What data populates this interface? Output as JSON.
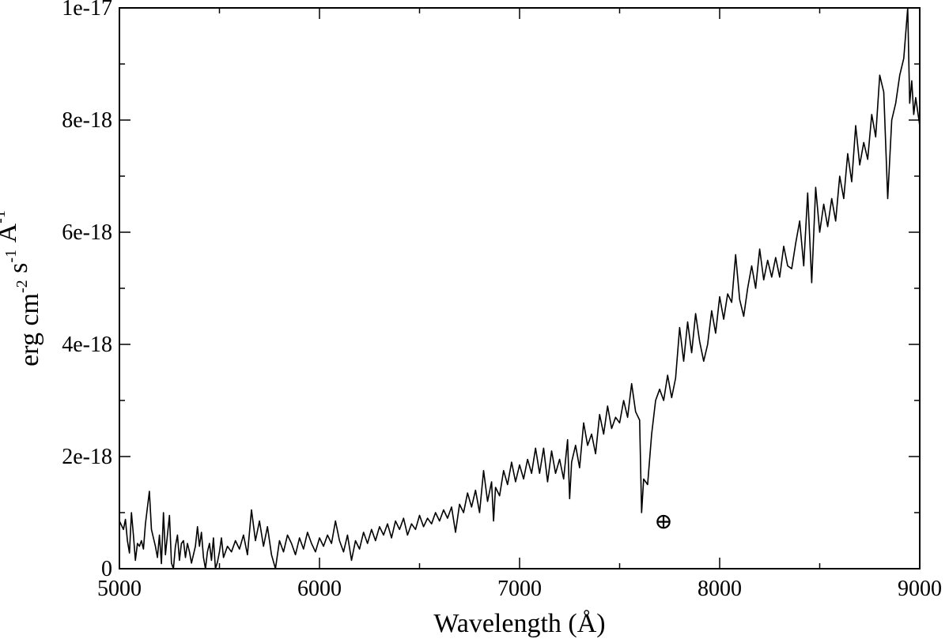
{
  "chart_data": {
    "type": "line",
    "xlabel": "Wavelength (Å)",
    "ylabel": "erg cm",
    "ylabel_parts": [
      {
        "text": "erg cm",
        "sup": "-2"
      },
      {
        "text": " s",
        "sup": "-1"
      },
      {
        "text": " Å",
        "sup": "-1"
      }
    ],
    "xlim": [
      5000,
      9000
    ],
    "ylim": [
      0,
      1e-17
    ],
    "x_ticks": [
      5000,
      6000,
      7000,
      8000,
      9000
    ],
    "x_tick_labels": [
      "5000",
      "6000",
      "7000",
      "8000",
      "9000"
    ],
    "y_ticks": [
      0,
      2e-18,
      4e-18,
      6e-18,
      8e-18,
      1e-17
    ],
    "y_tick_labels": [
      "0",
      "2e-18",
      "4e-18",
      "6e-18",
      "8e-18",
      "1e-17"
    ],
    "grid": false,
    "legend": "none",
    "line_color": "#000000",
    "annotation": {
      "symbol": "⊕",
      "x": 7720,
      "y": 8.5e-19
    },
    "series": [
      {
        "values_units": "erg cm^-2 s^-1 Å^-1",
        "points": [
          [
            5000,
            8.5e-19
          ],
          [
            5020,
            7e-19
          ],
          [
            5030,
            8.8e-19
          ],
          [
            5040,
            5e-19
          ],
          [
            5050,
            2.8e-19
          ],
          [
            5060,
            1e-18
          ],
          [
            5070,
            6e-19
          ],
          [
            5080,
            1.5e-19
          ],
          [
            5090,
            4.5e-19
          ],
          [
            5100,
            4e-19
          ],
          [
            5110,
            5e-19
          ],
          [
            5120,
            3.5e-19
          ],
          [
            5130,
            8e-19
          ],
          [
            5150,
            1.38e-18
          ],
          [
            5160,
            7e-19
          ],
          [
            5170,
            5.5e-19
          ],
          [
            5180,
            4e-19
          ],
          [
            5190,
            2e-19
          ],
          [
            5200,
            6e-19
          ],
          [
            5210,
            9e-20
          ],
          [
            5220,
            1e-18
          ],
          [
            5230,
            2.5e-19
          ],
          [
            5240,
            6e-19
          ],
          [
            5250,
            9.5e-19
          ],
          [
            5260,
            1e-19
          ],
          [
            5270,
            0
          ],
          [
            5280,
            4e-19
          ],
          [
            5290,
            6e-19
          ],
          [
            5300,
            1.5e-19
          ],
          [
            5310,
            4.5e-19
          ],
          [
            5320,
            5e-19
          ],
          [
            5330,
            2e-19
          ],
          [
            5340,
            4.5e-19
          ],
          [
            5350,
            3e-19
          ],
          [
            5360,
            1e-19
          ],
          [
            5380,
            4e-19
          ],
          [
            5390,
            7.5e-19
          ],
          [
            5400,
            4e-19
          ],
          [
            5410,
            6.5e-19
          ],
          [
            5420,
            2e-19
          ],
          [
            5430,
            0
          ],
          [
            5440,
            3e-19
          ],
          [
            5450,
            4.5e-19
          ],
          [
            5460,
            1.5e-19
          ],
          [
            5470,
            5.5e-19
          ],
          [
            5480,
            0
          ],
          [
            5490,
            1.2e-19
          ],
          [
            5500,
            3e-19
          ],
          [
            5510,
            5.5e-19
          ],
          [
            5520,
            2e-19
          ],
          [
            5540,
            4e-19
          ],
          [
            5560,
            3e-19
          ],
          [
            5580,
            5e-19
          ],
          [
            5600,
            3.5e-19
          ],
          [
            5620,
            6e-19
          ],
          [
            5640,
            2.5e-19
          ],
          [
            5660,
            1.05e-18
          ],
          [
            5680,
            5e-19
          ],
          [
            5700,
            8.5e-19
          ],
          [
            5720,
            4e-19
          ],
          [
            5740,
            7.5e-19
          ],
          [
            5760,
            2.5e-19
          ],
          [
            5780,
            0
          ],
          [
            5800,
            5e-19
          ],
          [
            5820,
            3e-19
          ],
          [
            5840,
            6e-19
          ],
          [
            5860,
            4.5e-19
          ],
          [
            5880,
            2.5e-19
          ],
          [
            5900,
            5.5e-19
          ],
          [
            5920,
            3.5e-19
          ],
          [
            5940,
            6.5e-19
          ],
          [
            5960,
            4.5e-19
          ],
          [
            5980,
            3e-19
          ],
          [
            6000,
            5.5e-19
          ],
          [
            6020,
            4e-19
          ],
          [
            6040,
            6e-19
          ],
          [
            6060,
            4.5e-19
          ],
          [
            6080,
            8.5e-19
          ],
          [
            6100,
            5e-19
          ],
          [
            6120,
            3e-19
          ],
          [
            6140,
            6e-19
          ],
          [
            6160,
            1.5e-19
          ],
          [
            6180,
            5e-19
          ],
          [
            6200,
            3.5e-19
          ],
          [
            6220,
            6.5e-19
          ],
          [
            6240,
            4.5e-19
          ],
          [
            6260,
            7e-19
          ],
          [
            6280,
            5e-19
          ],
          [
            6300,
            7.5e-19
          ],
          [
            6320,
            6e-19
          ],
          [
            6340,
            8e-19
          ],
          [
            6360,
            5.5e-19
          ],
          [
            6380,
            8.5e-19
          ],
          [
            6400,
            7e-19
          ],
          [
            6420,
            9e-19
          ],
          [
            6440,
            6e-19
          ],
          [
            6460,
            8e-19
          ],
          [
            6480,
            7e-19
          ],
          [
            6500,
            9.5e-19
          ],
          [
            6520,
            7.5e-19
          ],
          [
            6540,
            9e-19
          ],
          [
            6560,
            8e-19
          ],
          [
            6580,
            1e-18
          ],
          [
            6600,
            8.5e-19
          ],
          [
            6620,
            1.05e-18
          ],
          [
            6640,
            9e-19
          ],
          [
            6660,
            1.1e-18
          ],
          [
            6680,
            6.5e-19
          ],
          [
            6700,
            1.15e-18
          ],
          [
            6720,
            1e-18
          ],
          [
            6740,
            1.35e-18
          ],
          [
            6760,
            1.1e-18
          ],
          [
            6780,
            1.4e-18
          ],
          [
            6800,
            1e-18
          ],
          [
            6820,
            1.75e-18
          ],
          [
            6840,
            1.2e-18
          ],
          [
            6860,
            1.55e-18
          ],
          [
            6870,
            8.5e-19
          ],
          [
            6880,
            1.45e-18
          ],
          [
            6900,
            1.3e-18
          ],
          [
            6920,
            1.75e-18
          ],
          [
            6940,
            1.5e-18
          ],
          [
            6960,
            1.9e-18
          ],
          [
            6980,
            1.55e-18
          ],
          [
            7000,
            1.85e-18
          ],
          [
            7020,
            1.6e-18
          ],
          [
            7040,
            1.95e-18
          ],
          [
            7060,
            1.7e-18
          ],
          [
            7080,
            2.15e-18
          ],
          [
            7100,
            1.7e-18
          ],
          [
            7120,
            2.15e-18
          ],
          [
            7140,
            1.55e-18
          ],
          [
            7160,
            2.1e-18
          ],
          [
            7180,
            1.7e-18
          ],
          [
            7200,
            1.95e-18
          ],
          [
            7220,
            1.6e-18
          ],
          [
            7240,
            2.3e-18
          ],
          [
            7250,
            1.25e-18
          ],
          [
            7260,
            1.9e-18
          ],
          [
            7280,
            2.2e-18
          ],
          [
            7300,
            1.8e-18
          ],
          [
            7320,
            2.6e-18
          ],
          [
            7340,
            2.2e-18
          ],
          [
            7360,
            2.4e-18
          ],
          [
            7380,
            2.05e-18
          ],
          [
            7400,
            2.75e-18
          ],
          [
            7420,
            2.4e-18
          ],
          [
            7440,
            2.9e-18
          ],
          [
            7460,
            2.5e-18
          ],
          [
            7480,
            2.7e-18
          ],
          [
            7500,
            2.6e-18
          ],
          [
            7520,
            3e-18
          ],
          [
            7540,
            2.7e-18
          ],
          [
            7560,
            3.3e-18
          ],
          [
            7580,
            2.8e-18
          ],
          [
            7600,
            2.65e-18
          ],
          [
            7610,
            1e-18
          ],
          [
            7620,
            1.6e-18
          ],
          [
            7640,
            1.5e-18
          ],
          [
            7660,
            2.4e-18
          ],
          [
            7680,
            3e-18
          ],
          [
            7700,
            3.2e-18
          ],
          [
            7720,
            3e-18
          ],
          [
            7740,
            3.45e-18
          ],
          [
            7760,
            3.05e-18
          ],
          [
            7780,
            3.4e-18
          ],
          [
            7800,
            4.3e-18
          ],
          [
            7820,
            3.7e-18
          ],
          [
            7840,
            4.4e-18
          ],
          [
            7860,
            3.85e-18
          ],
          [
            7880,
            4.55e-18
          ],
          [
            7900,
            4.05e-18
          ],
          [
            7920,
            3.7e-18
          ],
          [
            7940,
            4e-18
          ],
          [
            7960,
            4.6e-18
          ],
          [
            7980,
            4.2e-18
          ],
          [
            8000,
            4.85e-18
          ],
          [
            8020,
            4.45e-18
          ],
          [
            8040,
            4.9e-18
          ],
          [
            8060,
            4.75e-18
          ],
          [
            8080,
            5.6e-18
          ],
          [
            8100,
            4.8e-18
          ],
          [
            8120,
            4.5e-18
          ],
          [
            8140,
            5e-18
          ],
          [
            8160,
            5.4e-18
          ],
          [
            8180,
            5e-18
          ],
          [
            8200,
            5.7e-18
          ],
          [
            8220,
            5.15e-18
          ],
          [
            8240,
            5.5e-18
          ],
          [
            8260,
            5.2e-18
          ],
          [
            8280,
            5.55e-18
          ],
          [
            8300,
            5.2e-18
          ],
          [
            8320,
            5.75e-18
          ],
          [
            8340,
            5.4e-18
          ],
          [
            8360,
            5.35e-18
          ],
          [
            8380,
            5.8e-18
          ],
          [
            8400,
            6.2e-18
          ],
          [
            8420,
            5.4e-18
          ],
          [
            8440,
            6.7e-18
          ],
          [
            8460,
            5.1e-18
          ],
          [
            8480,
            6.8e-18
          ],
          [
            8500,
            6e-18
          ],
          [
            8520,
            6.5e-18
          ],
          [
            8540,
            6.1e-18
          ],
          [
            8560,
            6.6e-18
          ],
          [
            8580,
            6.2e-18
          ],
          [
            8600,
            7e-18
          ],
          [
            8620,
            6.6e-18
          ],
          [
            8640,
            7.4e-18
          ],
          [
            8660,
            6.9e-18
          ],
          [
            8680,
            7.9e-18
          ],
          [
            8700,
            7.2e-18
          ],
          [
            8720,
            7.6e-18
          ],
          [
            8740,
            7.3e-18
          ],
          [
            8760,
            8.1e-18
          ],
          [
            8780,
            7.7e-18
          ],
          [
            8800,
            8.8e-18
          ],
          [
            8820,
            8.5e-18
          ],
          [
            8840,
            6.6e-18
          ],
          [
            8860,
            8e-18
          ],
          [
            8880,
            8.3e-18
          ],
          [
            8900,
            8.8e-18
          ],
          [
            8920,
            9.1e-18
          ],
          [
            8940,
            1e-17
          ],
          [
            8950,
            8.3e-18
          ],
          [
            8960,
            8.7e-18
          ],
          [
            8970,
            8.1e-18
          ],
          [
            8980,
            8.4e-18
          ],
          [
            9000,
            7.9e-18
          ]
        ]
      }
    ]
  }
}
